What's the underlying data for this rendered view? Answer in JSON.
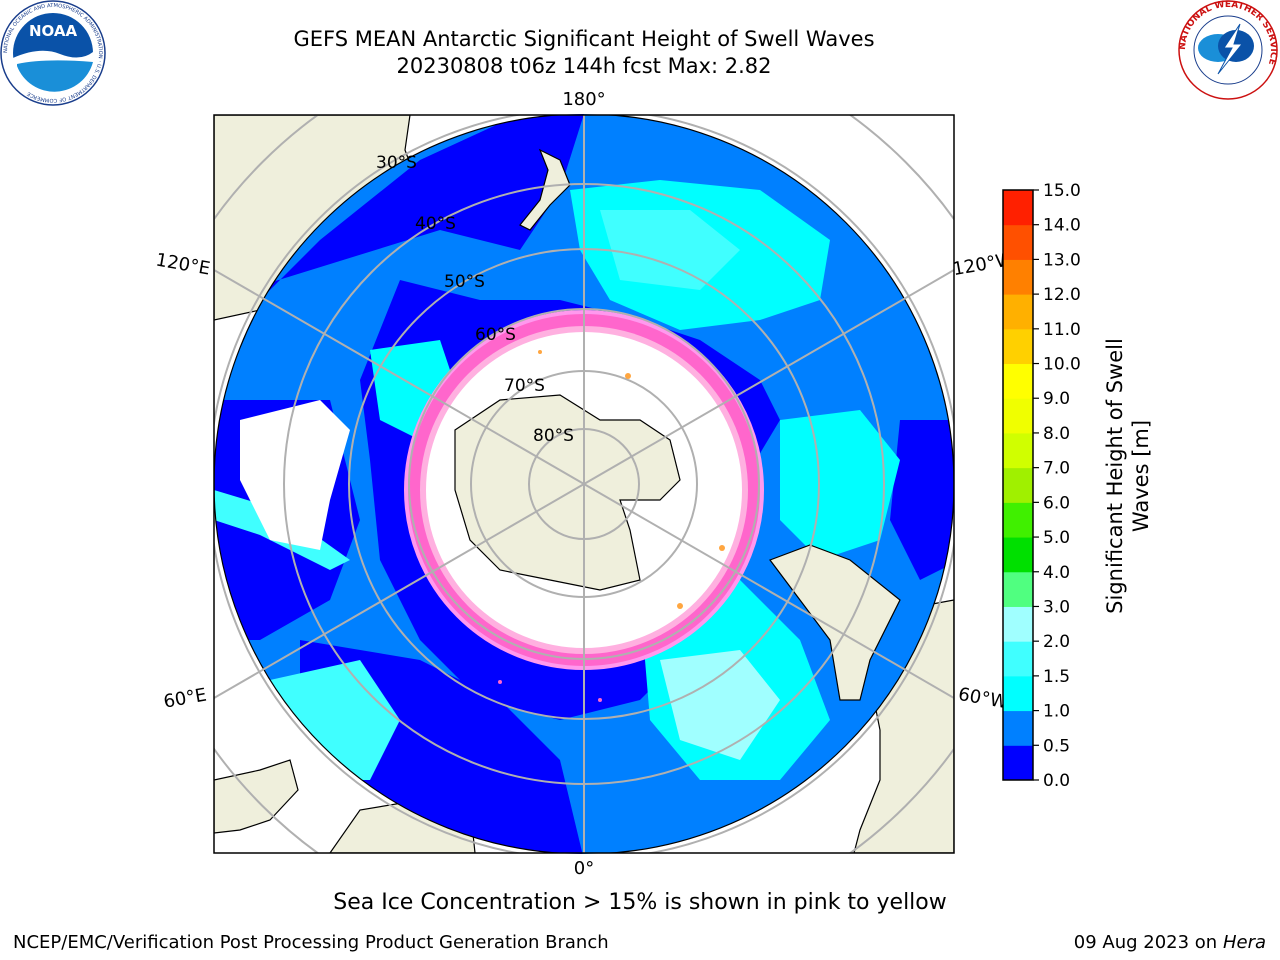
{
  "header": {
    "title_line1": "GEFS MEAN Antarctic Significant Height of Swell Waves",
    "title_line2": "20230808 t06z 144h fcst   Max: 2.82"
  },
  "logos": {
    "left": "NOAA",
    "left_ring": "NATIONAL OCEANIC AND ATMOSPHERIC ADMINISTRATION · U.S. DEPARTMENT OF COMMERCE",
    "right_ring": "NATIONAL WEATHER SERVICE"
  },
  "map": {
    "lon_labels": {
      "top": "180°",
      "bottom": "0°",
      "left_upper": "120°E",
      "right_upper": "120°W",
      "left_lower": "60°E",
      "right_lower": "60°W"
    },
    "lat_labels": [
      "30°S",
      "40°S",
      "50°S",
      "60°S",
      "70°S",
      "80°S"
    ]
  },
  "colorbar": {
    "title_line1": "Significant Height of Swell",
    "title_line2": "Waves [m]",
    "ticks": [
      "0.0",
      "0.5",
      "1.0",
      "1.5",
      "2.0",
      "3.0",
      "4.0",
      "5.0",
      "6.0",
      "7.0",
      "8.0",
      "9.0",
      "10.0",
      "11.0",
      "12.0",
      "13.0",
      "14.0",
      "15.0"
    ],
    "colors": [
      "#0000ff",
      "#0080ff",
      "#00ffff",
      "#40ffff",
      "#a0ffff",
      "#50ff80",
      "#00e000",
      "#40f000",
      "#a0f000",
      "#d0ff00",
      "#f0ff00",
      "#ffff00",
      "#ffd000",
      "#ffb000",
      "#ff8000",
      "#ff5000",
      "#ff2000"
    ]
  },
  "caption": "Sea Ice Concentration > 15% is shown in pink to yellow",
  "footer": {
    "left": "NCEP/EMC/Verification Post Processing Product Generation Branch",
    "right_date": "09 Aug 2023 on",
    "right_host": "Hera"
  }
}
